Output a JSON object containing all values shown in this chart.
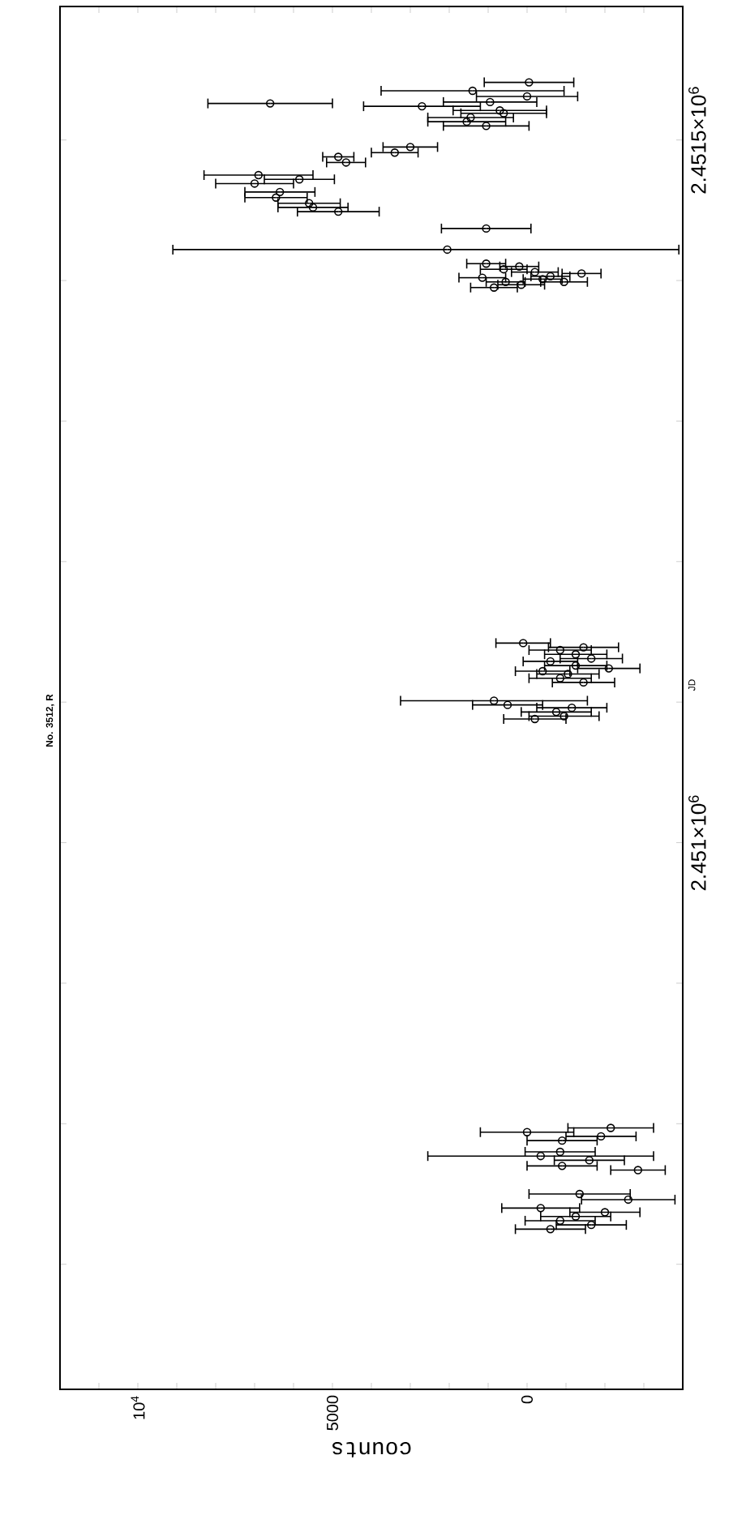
{
  "chart_data": {
    "type": "scatter",
    "title": "No. 3512, R",
    "xlabel": "counts",
    "ylabel": "JD",
    "xlim": [
      12000,
      -4000
    ],
    "ylim": [
      2450611,
      2451595
    ],
    "xticks": [
      {
        "value": 11000,
        "label": null
      },
      {
        "value": 10000,
        "label": "10$^{4}$"
      },
      {
        "value": 9000,
        "label": null
      },
      {
        "value": 8000,
        "label": null
      },
      {
        "value": 7000,
        "label": null
      },
      {
        "value": 6000,
        "label": null
      },
      5000,
      {
        "value": 4000,
        "label": null
      },
      {
        "value": 3000,
        "label": null
      },
      {
        "value": 2000,
        "label": null
      },
      {
        "value": 1000,
        "label": null
      },
      0,
      {
        "value": -1000,
        "label": null
      },
      {
        "value": -2000,
        "label": null
      },
      {
        "value": -3000,
        "label": null
      }
    ],
    "yticks": [
      {
        "value": 2450700,
        "label": null
      },
      {
        "value": 2450800,
        "label": null
      },
      {
        "value": 2450900,
        "label": null
      },
      {
        "value": 2451000,
        "label": "2.451×10$^{6}$"
      },
      {
        "value": 2451100,
        "label": null
      },
      {
        "value": 2451200,
        "label": null
      },
      {
        "value": 2451300,
        "label": null
      },
      {
        "value": 2451400,
        "label": null
      },
      {
        "value": 2451500,
        "label": "2.4515×10$^{6}$"
      }
    ],
    "marker": "circle",
    "grid": false,
    "series": [
      {
        "color": "#000000",
        "x": [
          6600,
          -50,
          1400,
          0,
          2700,
          950,
          700,
          1450,
          1050,
          1550,
          600,
          3000,
          3400,
          4650,
          4850,
          6900,
          5850,
          7000,
          6350,
          6450,
          5600,
          4850,
          5500,
          1050,
          2050,
          1050,
          600,
          200,
          -200,
          -600,
          1150,
          550,
          150,
          -400,
          -950,
          -1400,
          850,
          100,
          -1450,
          -850,
          -1250,
          -1650,
          -600,
          -1250,
          -2100,
          -1050,
          -400,
          -1450,
          -850,
          850,
          500,
          -750,
          -950,
          -1150,
          -200,
          0,
          -900,
          -1900,
          -2150,
          -350,
          -850,
          -1600,
          -2850,
          -900,
          -1350,
          -2600,
          -350,
          -850,
          -1250,
          -1650,
          -2000,
          -600
        ],
        "values": [
          2451526,
          2451541,
          2451535,
          2451531,
          2451524,
          2451527,
          2451521,
          2451516,
          2451510,
          2451513,
          2451519,
          2451495,
          2451491,
          2451484,
          2451488,
          2451475,
          2451472,
          2451469,
          2451463,
          2451459,
          2451455,
          2451449,
          2451452,
          2451437,
          2451422,
          2451412,
          2451408,
          2451410,
          2451406,
          2451403,
          2451402,
          2451399,
          2451397,
          2451401,
          2451399,
          2451405,
          2451395,
          2451142,
          2451139,
          2451137,
          2451134,
          2451131,
          2451129,
          2451126,
          2451124,
          2451120,
          2451122,
          2451114,
          2451117,
          2451101,
          2451098,
          2451093,
          2451090,
          2451096,
          2451088,
          2450794,
          2450788,
          2450791,
          2450797,
          2450777,
          2450780,
          2450774,
          2450767,
          2450770,
          2450750,
          2450746,
          2450740,
          2450731,
          2450734,
          2450728,
          2450737,
          2450725
        ],
        "xerrors": [
          1600,
          1150,
          2350,
          1300,
          1500,
          1200,
          1200,
          1100,
          1100,
          1000,
          1100,
          700,
          600,
          500,
          400,
          1400,
          900,
          1000,
          900,
          800,
          800,
          1050,
          900,
          1150,
          [
            -3900,
            9100
          ],
          500,
          600,
          500,
          600,
          500,
          600,
          500,
          600,
          500,
          600,
          500,
          600,
          700,
          900,
          800,
          800,
          800,
          700,
          800,
          800,
          800,
          700,
          800,
          800,
          2400,
          900,
          900,
          900,
          900,
          800,
          1200,
          900,
          900,
          1100,
          2900,
          900,
          900,
          700,
          900,
          1300,
          1200,
          1000,
          900,
          900,
          900,
          900,
          900
        ]
      }
    ]
  }
}
